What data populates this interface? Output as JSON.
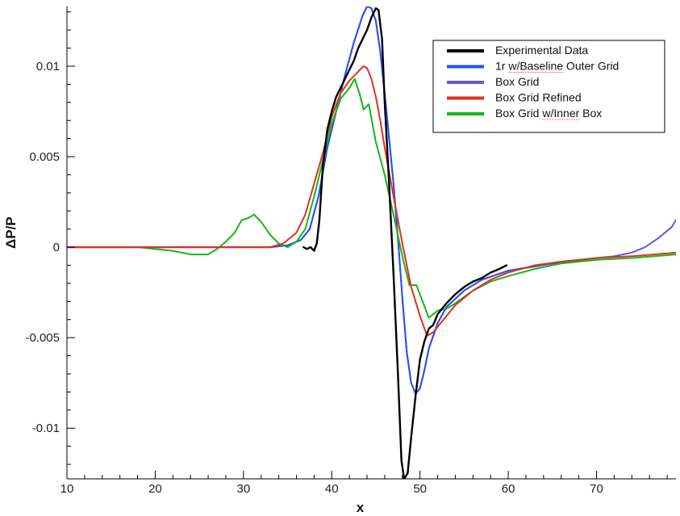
{
  "chart_data": {
    "type": "line",
    "title": "",
    "xlabel": "x",
    "ylabel": "ΔP/P",
    "xlim": [
      10,
      79
    ],
    "ylim": [
      -0.0128,
      0.0133
    ],
    "grid": false,
    "legend_position": "top-right",
    "x_ticks": [
      {
        "value": 10,
        "label": "10"
      },
      {
        "value": 20,
        "label": "20"
      },
      {
        "value": 30,
        "label": "30"
      },
      {
        "value": 40,
        "label": "40"
      },
      {
        "value": 50,
        "label": "50"
      },
      {
        "value": 60,
        "label": "60"
      },
      {
        "value": 70,
        "label": "70"
      }
    ],
    "y_ticks": [
      {
        "value": 0.01,
        "label": "0.01"
      },
      {
        "value": 0.005,
        "label": "0.005"
      },
      {
        "value": 0,
        "label": "0"
      },
      {
        "value": -0.005,
        "label": "-0.005"
      },
      {
        "value": -0.01,
        "label": "-0.01"
      }
    ],
    "series": [
      {
        "name": "Experimental Data",
        "color": "#000000",
        "points": [
          [
            36.8,
            0.0
          ],
          [
            37.2,
            -0.0001
          ],
          [
            37.6,
            0.0
          ],
          [
            38.0,
            -0.0002
          ],
          [
            38.3,
            0.0002
          ],
          [
            38.6,
            0.0015
          ],
          [
            39.0,
            0.0045
          ],
          [
            39.5,
            0.0065
          ],
          [
            40.0,
            0.0075
          ],
          [
            40.5,
            0.0083
          ],
          [
            41.0,
            0.0088
          ],
          [
            41.5,
            0.0093
          ],
          [
            42.0,
            0.0098
          ],
          [
            42.5,
            0.0103
          ],
          [
            43.0,
            0.011
          ],
          [
            43.5,
            0.0115
          ],
          [
            44.0,
            0.012
          ],
          [
            44.5,
            0.0127
          ],
          [
            45.0,
            0.0132
          ],
          [
            45.3,
            0.0131
          ],
          [
            45.7,
            0.0115
          ],
          [
            46.0,
            0.008
          ],
          [
            46.5,
            0.0035
          ],
          [
            47.0,
            -0.0015
          ],
          [
            47.5,
            -0.007
          ],
          [
            47.9,
            -0.0118
          ],
          [
            48.2,
            -0.0128
          ],
          [
            48.6,
            -0.0125
          ],
          [
            49.0,
            -0.0105
          ],
          [
            49.5,
            -0.0082
          ],
          [
            50.0,
            -0.0062
          ],
          [
            50.5,
            -0.0052
          ],
          [
            51.0,
            -0.0045
          ],
          [
            51.5,
            -0.0043
          ],
          [
            52.0,
            -0.0037
          ],
          [
            53.0,
            -0.0031
          ],
          [
            54.0,
            -0.0026
          ],
          [
            55.0,
            -0.0022
          ],
          [
            56.0,
            -0.0019
          ],
          [
            57.0,
            -0.0017
          ],
          [
            58.0,
            -0.0014
          ],
          [
            59.0,
            -0.0012
          ],
          [
            59.8,
            -0.001
          ]
        ]
      },
      {
        "name": "1r w/Baseline Outer Grid",
        "color": "#2a4ff5",
        "points": [
          [
            10.0,
            0.0
          ],
          [
            33.0,
            0.0
          ],
          [
            35.0,
            0.0001
          ],
          [
            36.5,
            0.0004
          ],
          [
            37.5,
            0.001
          ],
          [
            38.5,
            0.0028
          ],
          [
            39.5,
            0.0055
          ],
          [
            40.5,
            0.0075
          ],
          [
            41.5,
            0.0095
          ],
          [
            42.5,
            0.0113
          ],
          [
            43.5,
            0.0128
          ],
          [
            44.0,
            0.0133
          ],
          [
            44.5,
            0.0132
          ],
          [
            45.0,
            0.0125
          ],
          [
            45.5,
            0.0108
          ],
          [
            46.0,
            0.0085
          ],
          [
            46.5,
            0.006
          ],
          [
            47.0,
            0.0035
          ],
          [
            47.5,
            0.0005
          ],
          [
            48.0,
            -0.0028
          ],
          [
            48.5,
            -0.0058
          ],
          [
            49.0,
            -0.0075
          ],
          [
            49.5,
            -0.0081
          ],
          [
            50.0,
            -0.0078
          ],
          [
            50.5,
            -0.0068
          ],
          [
            51.0,
            -0.0056
          ],
          [
            52.0,
            -0.0042
          ],
          [
            53.0,
            -0.0033
          ],
          [
            55.0,
            -0.0024
          ],
          [
            57.0,
            -0.0018
          ],
          [
            60.0,
            -0.0013
          ],
          [
            65.0,
            -0.0009
          ],
          [
            68.5,
            -0.0007
          ]
        ]
      },
      {
        "name": "Box Grid",
        "color": "#6b55d6",
        "points": [
          [
            10.0,
            0.0
          ],
          [
            33.0,
            0.0
          ],
          [
            35.0,
            0.0001
          ],
          [
            36.5,
            0.0004
          ],
          [
            37.5,
            0.001
          ],
          [
            38.5,
            0.0028
          ],
          [
            39.5,
            0.0055
          ],
          [
            40.5,
            0.0075
          ],
          [
            41.5,
            0.0095
          ],
          [
            42.5,
            0.0113
          ],
          [
            43.5,
            0.0128
          ],
          [
            44.0,
            0.0133
          ],
          [
            44.5,
            0.0132
          ],
          [
            45.0,
            0.0125
          ],
          [
            45.5,
            0.0108
          ],
          [
            46.0,
            0.0085
          ],
          [
            46.5,
            0.006
          ],
          [
            47.0,
            0.0035
          ],
          [
            47.5,
            0.0005
          ],
          [
            48.0,
            -0.0028
          ],
          [
            48.5,
            -0.0058
          ],
          [
            49.0,
            -0.0075
          ],
          [
            49.5,
            -0.0081
          ],
          [
            50.0,
            -0.0078
          ],
          [
            50.5,
            -0.0068
          ],
          [
            51.0,
            -0.0056
          ],
          [
            52.0,
            -0.0042
          ],
          [
            53.0,
            -0.0033
          ],
          [
            55.0,
            -0.0024
          ],
          [
            57.0,
            -0.0018
          ],
          [
            60.0,
            -0.0013
          ],
          [
            65.0,
            -0.0009
          ],
          [
            68.5,
            -0.0007
          ],
          [
            70.0,
            -0.0006
          ],
          [
            72.0,
            -0.0005
          ],
          [
            74.0,
            -0.0003
          ],
          [
            75.5,
            0.0
          ],
          [
            77.0,
            0.0005
          ],
          [
            78.5,
            0.0011
          ],
          [
            79.0,
            0.0015
          ]
        ]
      },
      {
        "name": "Box Grid Refined",
        "color": "#e0301e",
        "points": [
          [
            10.0,
            0.0
          ],
          [
            33.0,
            0.0
          ],
          [
            34.5,
            0.0002
          ],
          [
            36.0,
            0.0008
          ],
          [
            37.0,
            0.0018
          ],
          [
            38.0,
            0.0035
          ],
          [
            39.0,
            0.0052
          ],
          [
            40.0,
            0.0072
          ],
          [
            41.0,
            0.0085
          ],
          [
            42.0,
            0.0092
          ],
          [
            43.0,
            0.0097
          ],
          [
            43.6,
            0.01
          ],
          [
            44.0,
            0.0099
          ],
          [
            44.5,
            0.0093
          ],
          [
            45.0,
            0.0083
          ],
          [
            45.5,
            0.007
          ],
          [
            46.0,
            0.0055
          ],
          [
            47.0,
            0.0028
          ],
          [
            48.0,
            0.0002
          ],
          [
            49.0,
            -0.0022
          ],
          [
            50.0,
            -0.0038
          ],
          [
            50.8,
            -0.0049
          ],
          [
            51.5,
            -0.0047
          ],
          [
            52.5,
            -0.0041
          ],
          [
            54.0,
            -0.0032
          ],
          [
            56.0,
            -0.0024
          ],
          [
            58.0,
            -0.0018
          ],
          [
            60.0,
            -0.0014
          ],
          [
            63.0,
            -0.001
          ],
          [
            66.0,
            -0.0008
          ],
          [
            70.0,
            -0.0006
          ],
          [
            74.0,
            -0.0005
          ],
          [
            79.0,
            -0.0003
          ]
        ]
      },
      {
        "name": "Box Grid w/Inner Box",
        "color": "#16b51a",
        "points": [
          [
            10.0,
            0.0
          ],
          [
            18.0,
            0.0
          ],
          [
            20.0,
            -0.0001
          ],
          [
            22.0,
            -0.0002
          ],
          [
            24.0,
            -0.0004
          ],
          [
            26.0,
            -0.0004
          ],
          [
            27.0,
            -0.0001
          ],
          [
            28.0,
            0.0003
          ],
          [
            29.0,
            0.0008
          ],
          [
            29.8,
            0.0015
          ],
          [
            30.5,
            0.0016
          ],
          [
            31.2,
            0.0018
          ],
          [
            32.0,
            0.0014
          ],
          [
            33.0,
            0.0007
          ],
          [
            34.0,
            0.0002
          ],
          [
            35.0,
            0.0
          ],
          [
            36.0,
            0.0003
          ],
          [
            37.0,
            0.001
          ],
          [
            38.0,
            0.0028
          ],
          [
            39.0,
            0.0048
          ],
          [
            40.0,
            0.0068
          ],
          [
            41.0,
            0.0082
          ],
          [
            42.0,
            0.0088
          ],
          [
            42.6,
            0.0093
          ],
          [
            43.2,
            0.0084
          ],
          [
            43.6,
            0.0076
          ],
          [
            44.2,
            0.0079
          ],
          [
            45.0,
            0.0058
          ],
          [
            46.0,
            0.004
          ],
          [
            47.0,
            0.0018
          ],
          [
            48.0,
            -0.0005
          ],
          [
            48.8,
            -0.0021
          ],
          [
            49.6,
            -0.0021
          ],
          [
            50.3,
            -0.003
          ],
          [
            51.0,
            -0.0039
          ],
          [
            52.0,
            -0.0035
          ],
          [
            53.0,
            -0.0034
          ],
          [
            54.0,
            -0.0031
          ],
          [
            56.0,
            -0.0024
          ],
          [
            58.0,
            -0.0019
          ],
          [
            60.0,
            -0.0016
          ],
          [
            63.0,
            -0.0012
          ],
          [
            66.0,
            -0.0009
          ],
          [
            70.0,
            -0.0007
          ],
          [
            74.0,
            -0.0006
          ],
          [
            79.0,
            -0.0004
          ]
        ]
      }
    ]
  }
}
